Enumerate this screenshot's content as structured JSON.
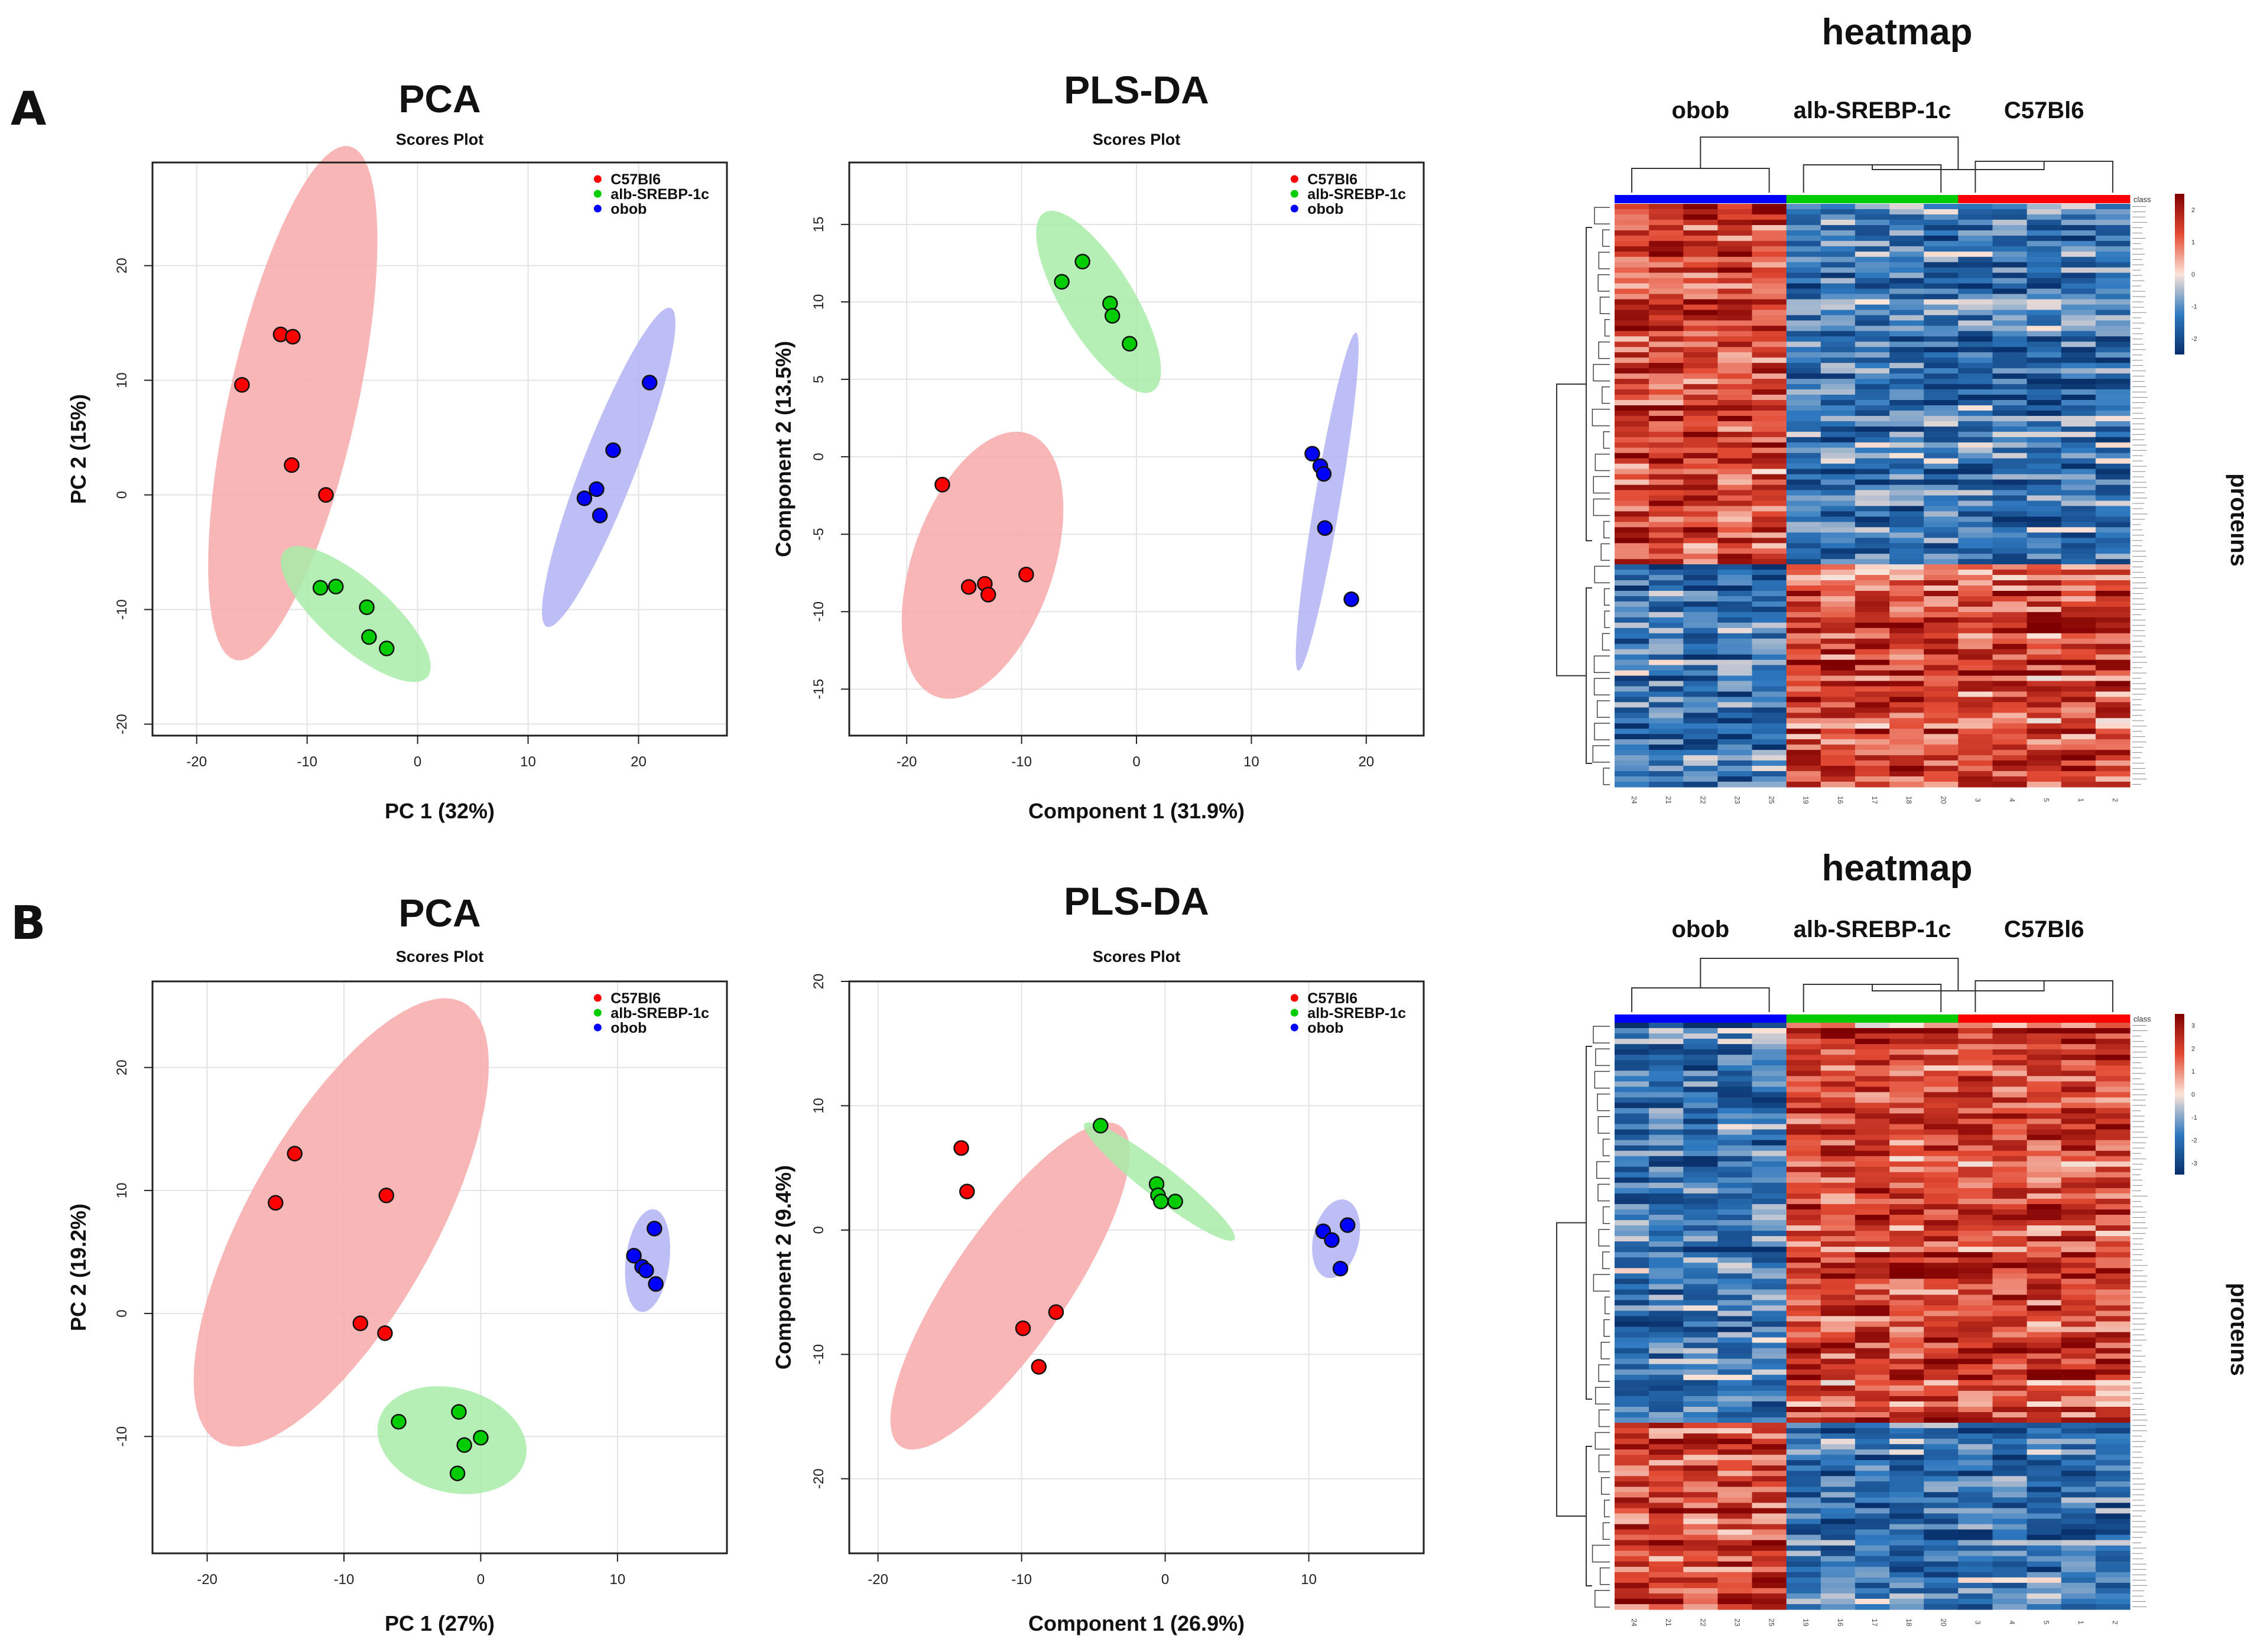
{
  "panels": [
    {
      "label": "A"
    },
    {
      "label": "B"
    }
  ],
  "colors": {
    "C57Bl6": "#ff0000",
    "alb-SREBP-1c": "#00cc00",
    "obob": "#0000ff"
  },
  "chart_data": [
    {
      "id": "A-pca",
      "type": "scatter",
      "title": "PCA",
      "subtitle": "Scores Plot",
      "xlabel": "PC 1 (32%)",
      "ylabel": "PC 2 (15%)",
      "xlim": [
        -24,
        28
      ],
      "ylim": [
        -21,
        29
      ],
      "xticks": [
        -20,
        -10,
        0,
        10,
        20
      ],
      "yticks": [
        -20,
        -10,
        0,
        10,
        20
      ],
      "legend": [
        "C57Bl6",
        "alb-SREBP-1c",
        "obob"
      ],
      "series": [
        {
          "name": "C57Bl6",
          "color": "#ff0000",
          "fill": "#f8a9a9",
          "points": [
            [
              -15.9,
              9.6
            ],
            [
              -12.4,
              14.0
            ],
            [
              -11.3,
              13.8
            ],
            [
              -11.4,
              2.6
            ],
            [
              -8.3,
              0.0
            ]
          ],
          "ellipse": {
            "cx": -11.3,
            "cy": 8.0,
            "rx": 23.0,
            "ry": 5.8,
            "angle": 77
          }
        },
        {
          "name": "alb-SREBP-1c",
          "color": "#00cc00",
          "fill": "#a8eca8",
          "points": [
            [
              -8.8,
              -8.1
            ],
            [
              -7.4,
              -8.0
            ],
            [
              -4.6,
              -9.8
            ],
            [
              -4.4,
              -12.4
            ],
            [
              -2.8,
              -13.4
            ]
          ],
          "ellipse": {
            "cx": -5.6,
            "cy": -10.4,
            "rx": 8.5,
            "ry": 3.0,
            "angle": -40
          }
        },
        {
          "name": "obob",
          "color": "#0000ff",
          "fill": "#b3b3f5",
          "points": [
            [
              15.1,
              -0.3
            ],
            [
              16.2,
              0.5
            ],
            [
              16.5,
              -1.8
            ],
            [
              17.7,
              3.9
            ],
            [
              21.0,
              9.8
            ]
          ],
          "ellipse": {
            "cx": 17.3,
            "cy": 2.4,
            "rx": 15.0,
            "ry": 2.4,
            "angle": 68
          }
        }
      ]
    },
    {
      "id": "A-plsda",
      "type": "scatter",
      "title": "PLS-DA",
      "subtitle": "Scores Plot",
      "xlabel": "Component 1 (31.9%)",
      "ylabel": "Component 2 (13.5%)",
      "xlim": [
        -25,
        25
      ],
      "ylim": [
        -18,
        19
      ],
      "xticks": [
        -20,
        -10,
        0,
        10,
        20
      ],
      "yticks": [
        -15,
        -10,
        -5,
        0,
        5,
        10,
        15
      ],
      "legend": [
        "C57Bl6",
        "alb-SREBP-1c",
        "obob"
      ],
      "series": [
        {
          "name": "C57Bl6",
          "color": "#ff0000",
          "fill": "#f8a9a9",
          "points": [
            [
              -16.9,
              -1.8
            ],
            [
              -14.6,
              -8.4
            ],
            [
              -13.2,
              -8.2
            ],
            [
              -12.9,
              -8.9
            ],
            [
              -9.6,
              -7.6
            ]
          ],
          "ellipse": {
            "cx": -13.4,
            "cy": -7.0,
            "rx": 9.5,
            "ry": 5.8,
            "angle": 58
          }
        },
        {
          "name": "alb-SREBP-1c",
          "color": "#00cc00",
          "fill": "#a8eca8",
          "points": [
            [
              -6.5,
              11.3
            ],
            [
              -4.7,
              12.6
            ],
            [
              -2.3,
              9.9
            ],
            [
              -2.1,
              9.1
            ],
            [
              -0.6,
              7.3
            ]
          ],
          "ellipse": {
            "cx": -3.3,
            "cy": 10.0,
            "rx": 7.5,
            "ry": 2.8,
            "angle": -48
          }
        },
        {
          "name": "obob",
          "color": "#0000ff",
          "fill": "#b3b3f5",
          "points": [
            [
              15.3,
              0.2
            ],
            [
              16.0,
              -0.6
            ],
            [
              16.3,
              -1.1
            ],
            [
              16.4,
              -4.6
            ],
            [
              18.7,
              -9.2
            ]
          ],
          "ellipse": {
            "cx": 16.6,
            "cy": -2.9,
            "rx": 11.2,
            "ry": 1.1,
            "angle": 77
          }
        }
      ]
    },
    {
      "id": "B-pca",
      "type": "scatter",
      "title": "PCA",
      "subtitle": "Scores Plot",
      "xlabel": "PC 1 (27%)",
      "ylabel": "PC 2 (19.2%)",
      "xlim": [
        -24,
        18
      ],
      "ylim": [
        -19.5,
        27
      ],
      "xticks": [
        -20,
        -10,
        0,
        10
      ],
      "yticks": [
        -10,
        0,
        10,
        20
      ],
      "legend": [
        "C57Bl6",
        "alb-SREBP-1c",
        "obob"
      ],
      "series": [
        {
          "name": "C57Bl6",
          "color": "#ff0000",
          "fill": "#f8a9a9",
          "points": [
            [
              -15.0,
              9.0
            ],
            [
              -13.6,
              13.0
            ],
            [
              -8.8,
              -0.8
            ],
            [
              -6.9,
              9.6
            ],
            [
              -7.0,
              -1.6
            ]
          ],
          "ellipse": {
            "cx": -10.2,
            "cy": 7.4,
            "rx": 20.0,
            "ry": 7.0,
            "angle": 64
          }
        },
        {
          "name": "alb-SREBP-1c",
          "color": "#00cc00",
          "fill": "#a8eca8",
          "points": [
            [
              -6.0,
              -8.8
            ],
            [
              -1.6,
              -8.0
            ],
            [
              -1.2,
              -10.7
            ],
            [
              0.0,
              -10.1
            ],
            [
              -1.7,
              -13.0
            ]
          ],
          "ellipse": {
            "cx": -2.1,
            "cy": -10.3,
            "rx": 5.6,
            "ry": 4.2,
            "angle": -20
          }
        },
        {
          "name": "obob",
          "color": "#0000ff",
          "fill": "#b3b3f5",
          "points": [
            [
              11.2,
              4.7
            ],
            [
              11.8,
              3.8
            ],
            [
              12.1,
              3.5
            ],
            [
              12.7,
              6.9
            ],
            [
              12.8,
              2.4
            ]
          ],
          "ellipse": {
            "cx": 12.2,
            "cy": 4.3,
            "rx": 4.2,
            "ry": 1.6,
            "angle": 84
          }
        }
      ]
    },
    {
      "id": "B-plsda",
      "type": "scatter",
      "title": "PLS-DA",
      "subtitle": "Scores Plot",
      "xlabel": "Component 1 (26.9%)",
      "ylabel": "Component 2 (9.4%)",
      "xlim": [
        -22,
        18
      ],
      "ylim": [
        -26,
        20
      ],
      "xticks": [
        -20,
        -10,
        0,
        10
      ],
      "yticks": [
        -20,
        -10,
        0,
        10,
        20
      ],
      "legend": [
        "C57Bl6",
        "alb-SREBP-1c",
        "obob"
      ],
      "series": [
        {
          "name": "C57Bl6",
          "color": "#ff0000",
          "fill": "#f8a9a9",
          "points": [
            [
              -14.2,
              6.6
            ],
            [
              -13.8,
              3.1
            ],
            [
              -7.6,
              -6.6
            ],
            [
              -9.9,
              -7.9
            ],
            [
              -8.8,
              -11.0
            ]
          ],
          "ellipse": {
            "cx": -10.8,
            "cy": -4.5,
            "rx": 15.0,
            "ry": 4.2,
            "angle": 60
          }
        },
        {
          "name": "alb-SREBP-1c",
          "color": "#00cc00",
          "fill": "#a8eca8",
          "points": [
            [
              -4.5,
              8.4
            ],
            [
              -0.6,
              3.7
            ],
            [
              -0.5,
              2.8
            ],
            [
              -0.3,
              2.3
            ],
            [
              0.7,
              2.3
            ]
          ],
          "ellipse": {
            "cx": -0.4,
            "cy": 3.9,
            "rx": 7.0,
            "ry": 1.2,
            "angle": -42
          }
        },
        {
          "name": "obob",
          "color": "#0000ff",
          "fill": "#b3b3f5",
          "points": [
            [
              11.0,
              -0.1
            ],
            [
              11.6,
              -0.8
            ],
            [
              12.2,
              -3.1
            ],
            [
              12.7,
              0.4
            ]
          ],
          "ellipse": {
            "cx": 11.9,
            "cy": -0.7,
            "rx": 3.2,
            "ry": 1.6,
            "angle": 80
          }
        }
      ]
    },
    {
      "id": "A-heatmap",
      "type": "heatmap",
      "title": "heatmap",
      "groups": [
        "obob",
        "alb-SREBP-1c",
        "C57Bl6"
      ],
      "class_label": "class",
      "side_label": "proteins",
      "columns": [
        "24",
        "21",
        "22",
        "23",
        "25",
        "19",
        "16",
        "17",
        "18",
        "20",
        "3",
        "4",
        "5",
        "1",
        "2"
      ],
      "column_group": [
        0,
        0,
        0,
        0,
        0,
        1,
        1,
        1,
        1,
        1,
        2,
        2,
        2,
        2,
        2
      ],
      "color_scale": [
        "#08306b",
        "#2f7ac0",
        "#fbe4d8",
        "#e34a33",
        "#7f0000"
      ],
      "colorbar_ticks": [
        "2",
        "1",
        "0",
        "-1",
        "-2"
      ],
      "block_pattern": [
        1,
        -1,
        -1
      ],
      "n_rows": 110,
      "split_fraction": 0.62
    },
    {
      "id": "B-heatmap",
      "type": "heatmap",
      "title": "heatmap",
      "groups": [
        "obob",
        "alb-SREBP-1c",
        "C57Bl6"
      ],
      "class_label": "class",
      "side_label": "proteins",
      "columns": [
        "24",
        "21",
        "22",
        "23",
        "25",
        "19",
        "16",
        "17",
        "18",
        "20",
        "3",
        "4",
        "5",
        "1",
        "2"
      ],
      "column_group": [
        0,
        0,
        0,
        0,
        0,
        1,
        1,
        1,
        1,
        1,
        2,
        2,
        2,
        2,
        2
      ],
      "color_scale": [
        "#08306b",
        "#2f7ac0",
        "#fbe4d8",
        "#e34a33",
        "#7f0000"
      ],
      "colorbar_ticks": [
        "3",
        "2",
        "1",
        "0",
        "-1",
        "-2",
        "-3"
      ],
      "block_pattern": [
        -1,
        1,
        1
      ],
      "n_rows": 110,
      "split_fraction": 0.68
    }
  ]
}
